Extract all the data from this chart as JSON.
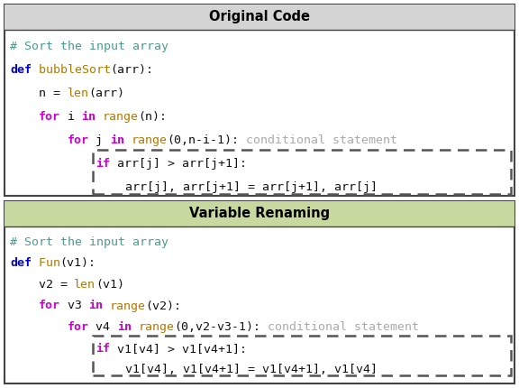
{
  "title1": "Original Code",
  "title2": "Variable Renaming",
  "header1_bg": "#d4d4d4",
  "header2_bg": "#c8d9a0",
  "border_color": "#444444",
  "dashed_color": "#555555",
  "orig_lines": [
    [
      {
        "t": "# Sort the input array",
        "c": "#4a9b8e",
        "b": false
      }
    ],
    [
      {
        "t": "def",
        "c": "#0000cc",
        "b": true
      },
      {
        "t": " bubbleSort",
        "c": "#b07800",
        "b": false
      },
      {
        "t": "(arr):",
        "c": "#111111",
        "b": false
      }
    ],
    [
      {
        "t": "    n = ",
        "c": "#111111",
        "b": false
      },
      {
        "t": "len",
        "c": "#b07800",
        "b": false
      },
      {
        "t": "(arr)",
        "c": "#111111",
        "b": false
      }
    ],
    [
      {
        "t": "    ",
        "c": "#111111",
        "b": false
      },
      {
        "t": "for",
        "c": "#cc00cc",
        "b": true
      },
      {
        "t": " i ",
        "c": "#111111",
        "b": false
      },
      {
        "t": "in",
        "c": "#cc00cc",
        "b": true
      },
      {
        "t": " ",
        "c": "#111111",
        "b": false
      },
      {
        "t": "range",
        "c": "#b07800",
        "b": false
      },
      {
        "t": "(n):",
        "c": "#111111",
        "b": false
      }
    ],
    [
      {
        "t": "        ",
        "c": "#111111",
        "b": false
      },
      {
        "t": "for",
        "c": "#cc00cc",
        "b": true
      },
      {
        "t": " j ",
        "c": "#111111",
        "b": false
      },
      {
        "t": "in",
        "c": "#cc00cc",
        "b": true
      },
      {
        "t": " ",
        "c": "#111111",
        "b": false
      },
      {
        "t": "range",
        "c": "#b07800",
        "b": false
      },
      {
        "t": "(0,n-i-1):",
        "c": "#111111",
        "b": false
      },
      {
        "t": " conditional statement",
        "c": "#aaaaaa",
        "b": false
      }
    ],
    [
      {
        "t": "            ",
        "c": "#111111",
        "b": false
      },
      {
        "t": "if",
        "c": "#cc00cc",
        "b": true
      },
      {
        "t": " arr[j] > arr[j+1]:",
        "c": "#111111",
        "b": false
      }
    ],
    [
      {
        "t": "                arr[j], arr[j+1] = arr[j+1], arr[j]",
        "c": "#111111",
        "b": false
      }
    ]
  ],
  "var_lines": [
    [
      {
        "t": "# Sort the input array",
        "c": "#4a9b8e",
        "b": false
      }
    ],
    [
      {
        "t": "def",
        "c": "#0000cc",
        "b": true
      },
      {
        "t": " Fun",
        "c": "#b07800",
        "b": false
      },
      {
        "t": "(v1):",
        "c": "#111111",
        "b": false
      }
    ],
    [
      {
        "t": "    v2 = ",
        "c": "#111111",
        "b": false
      },
      {
        "t": "len",
        "c": "#b07800",
        "b": false
      },
      {
        "t": "(v1)",
        "c": "#111111",
        "b": false
      }
    ],
    [
      {
        "t": "    ",
        "c": "#111111",
        "b": false
      },
      {
        "t": "for",
        "c": "#cc00cc",
        "b": true
      },
      {
        "t": " v3 ",
        "c": "#111111",
        "b": false
      },
      {
        "t": "in",
        "c": "#cc00cc",
        "b": true
      },
      {
        "t": " ",
        "c": "#111111",
        "b": false
      },
      {
        "t": "range",
        "c": "#b07800",
        "b": false
      },
      {
        "t": "(v2):",
        "c": "#111111",
        "b": false
      }
    ],
    [
      {
        "t": "        ",
        "c": "#111111",
        "b": false
      },
      {
        "t": "for",
        "c": "#cc00cc",
        "b": true
      },
      {
        "t": " v4 ",
        "c": "#111111",
        "b": false
      },
      {
        "t": "in",
        "c": "#cc00cc",
        "b": true
      },
      {
        "t": " ",
        "c": "#111111",
        "b": false
      },
      {
        "t": "range",
        "c": "#b07800",
        "b": false
      },
      {
        "t": "(0,v2-v3-1):",
        "c": "#111111",
        "b": false
      },
      {
        "t": " conditional statement",
        "c": "#aaaaaa",
        "b": false
      }
    ],
    [
      {
        "t": "            ",
        "c": "#111111",
        "b": false
      },
      {
        "t": "if",
        "c": "#cc00cc",
        "b": true
      },
      {
        "t": " v1[v4] > v1[v4+1]:",
        "c": "#111111",
        "b": false
      }
    ],
    [
      {
        "t": "                v1[v4], v1[v4+1] = v1[v4+1], v1[v4]",
        "c": "#111111",
        "b": false
      }
    ]
  ],
  "figw": 5.76,
  "figh": 4.3,
  "dpi": 100
}
